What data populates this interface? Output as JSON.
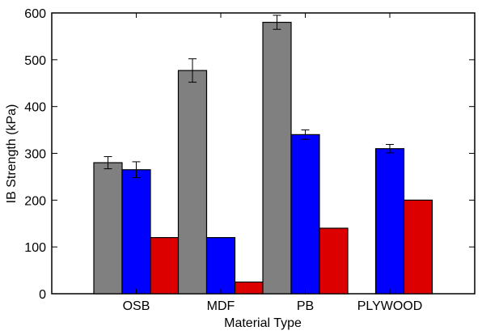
{
  "chart_data": {
    "type": "bar",
    "xlabel": "Material Type",
    "ylabel": "IB Strength (kPa)",
    "ylim": [
      0,
      600
    ],
    "yticks": [
      0,
      100,
      200,
      300,
      400,
      500,
      600
    ],
    "categories": [
      "OSB",
      "MDF",
      "PB",
      "PLYWOOD"
    ],
    "grid": false,
    "legend": "none",
    "series": [
      {
        "color": "#808080",
        "values": [
          280,
          477,
          580,
          null
        ],
        "errors": [
          13,
          25,
          15,
          null
        ]
      },
      {
        "color": "#0000ff",
        "values": [
          265,
          120,
          340,
          310
        ],
        "errors": [
          17,
          null,
          10,
          9
        ]
      },
      {
        "color": "#dd0000",
        "values": [
          120,
          25,
          140,
          200
        ],
        "errors": [
          null,
          null,
          null,
          null
        ]
      }
    ]
  }
}
